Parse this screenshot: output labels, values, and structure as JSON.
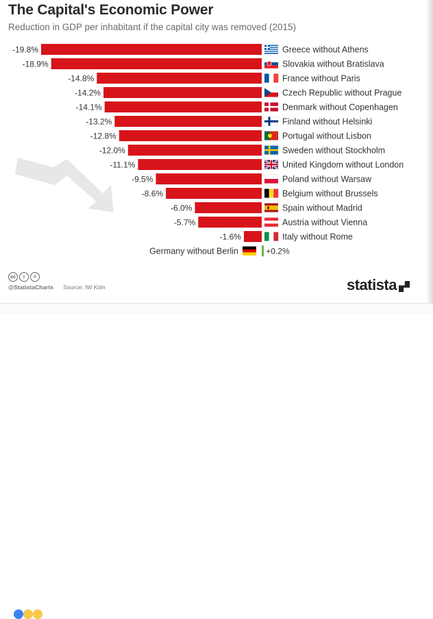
{
  "header": {
    "title": "The Capital's Economic Power",
    "subtitle": "Reduction in GDP per inhabitant if the capital city was removed (2015)"
  },
  "footer": {
    "handle": "@StatistaCharts",
    "source": "Source: IW Köln",
    "logo_text": "statista",
    "cc_icons": [
      "cc-icon",
      "by-icon",
      "nd-icon"
    ]
  },
  "colors": {
    "bar": "#d7141a",
    "text": "#333333",
    "arrow_bg": "#e7e7e7"
  },
  "chart_data": {
    "type": "bar",
    "orientation": "horizontal",
    "title": "The Capital's Economic Power",
    "subtitle": "Reduction in GDP per inhabitant if the capital city was removed (2015)",
    "unit": "%",
    "xlim": [
      -19.8,
      0.2
    ],
    "categories": [
      "Greece without Athens",
      "Slovakia without Bratislava",
      "France without Paris",
      "Czech Republic without Prague",
      "Denmark without Copenhagen",
      "Finland without Helsinki",
      "Portugal without Lisbon",
      "Sweden without Stockholm",
      "United Kingdom without London",
      "Poland without Warsaw",
      "Belgium without Brussels",
      "Spain without Madrid",
      "Austria without Vienna",
      "Italy without Rome",
      "Germany without Berlin"
    ],
    "values": [
      -19.8,
      -18.9,
      -14.8,
      -14.2,
      -14.1,
      -13.2,
      -12.8,
      -12.0,
      -11.1,
      -9.5,
      -8.6,
      -6.0,
      -5.7,
      -1.6,
      0.2
    ],
    "value_labels": [
      "-19.8%",
      "-18.9%",
      "-14.8%",
      "-14.2%",
      "-14.1%",
      "-13.2%",
      "-12.8%",
      "-12.0%",
      "-11.1%",
      "-9.5%",
      "-8.6%",
      "-6.0%",
      "-5.7%",
      "-1.6%",
      "+0.2%"
    ],
    "flags": [
      "greece",
      "slovakia",
      "france",
      "czech-republic",
      "denmark",
      "finland",
      "portugal",
      "sweden",
      "united-kingdom",
      "poland",
      "belgium",
      "spain",
      "austria",
      "italy",
      "germany"
    ]
  }
}
